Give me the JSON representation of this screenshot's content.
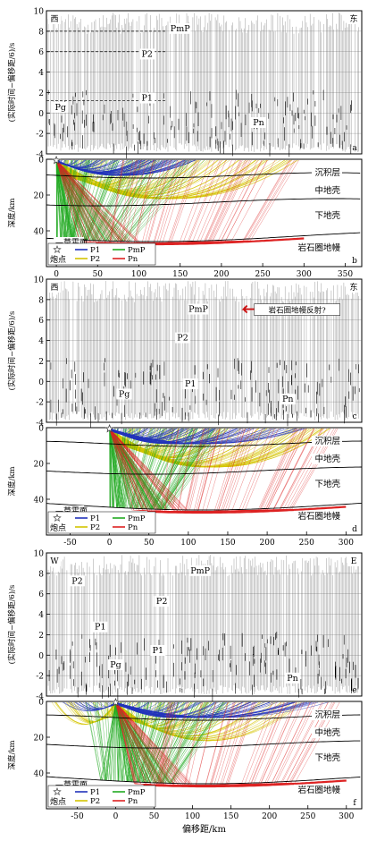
{
  "figure": {
    "xlabel": "偏移距/km",
    "seismic_ylabel": "(实际时间−偏移距/6)/s",
    "depth_ylabel": "深度/km",
    "shot_label": "炮点",
    "layer_labels": [
      "沉积层",
      "中地壳",
      "下地壳",
      "岩石圈地幔"
    ],
    "moho_label": "莫霍面",
    "annotation_c": "岩石圈地幔反射?",
    "legend": [
      {
        "name": "P1",
        "color": "#2233bb"
      },
      {
        "name": "PmP",
        "color": "#22aa22"
      },
      {
        "name": "P2",
        "color": "#d4c400"
      },
      {
        "name": "Pn",
        "color": "#dd2222"
      }
    ]
  },
  "chart_data": [
    {
      "type": "seismic-section",
      "panel": "a",
      "direction_left": "西",
      "direction_right": "东",
      "ylabel": "(实际时间−偏移距/6)/s",
      "ylim": [
        -4,
        10
      ],
      "xlim": [
        -12,
        370
      ],
      "yticks": [
        -4,
        -2,
        0,
        2,
        4,
        6,
        8,
        10
      ],
      "phase_labels": [
        {
          "name": "PmP",
          "x": 150,
          "y": 8.0
        },
        {
          "name": "P2",
          "x": 110,
          "y": 5.5
        },
        {
          "name": "P1",
          "x": 110,
          "y": 1.2
        },
        {
          "name": "Pg",
          "x": 5,
          "y": 0.3
        },
        {
          "name": "Pn",
          "x": 245,
          "y": -1.2
        }
      ],
      "dashed_reference_lines": [
        8,
        6,
        1.2
      ]
    },
    {
      "type": "raypath-model",
      "panel": "b",
      "xlabel": "",
      "ylabel": "深度/km",
      "xlim": [
        -12,
        370
      ],
      "ylim": [
        0,
        60
      ],
      "xticks": [
        0,
        50,
        100,
        150,
        200,
        250,
        300,
        350
      ],
      "yticks": [
        0,
        20,
        40
      ],
      "shot_x": 0,
      "ray_span": {
        "P1": [
          0,
          170
        ],
        "P2": [
          0,
          300
        ],
        "PmP": [
          0,
          180
        ],
        "Pn": [
          80,
          300
        ]
      },
      "layer_labels": [
        "沉积层",
        "中地壳",
        "下地壳",
        "岩石圈地幔"
      ],
      "moho_label": "莫霍面"
    },
    {
      "type": "seismic-section",
      "panel": "c",
      "direction_left": "西",
      "direction_right": "东",
      "ylabel": "(实际时间−偏移距/6)/s",
      "ylim": [
        -4,
        10
      ],
      "xlim": [
        -85,
        320
      ],
      "yticks": [
        -4,
        -2,
        0,
        2,
        4,
        6,
        8,
        10
      ],
      "phase_labels": [
        {
          "name": "PmP",
          "x": 110,
          "y": 6.8
        },
        {
          "name": "P2",
          "x": 90,
          "y": 4.0
        },
        {
          "name": "P1",
          "x": 100,
          "y": -0.5
        },
        {
          "name": "Pg",
          "x": 15,
          "y": -1.5
        },
        {
          "name": "Pn",
          "x": 225,
          "y": -2.0
        }
      ],
      "annotation": "岩石圈地幔反射?"
    },
    {
      "type": "raypath-model",
      "panel": "d",
      "xlabel": "",
      "ylabel": "深度/km",
      "xlim": [
        -80,
        320
      ],
      "ylim": [
        0,
        60
      ],
      "xticks": [
        -50,
        0,
        50,
        100,
        150,
        200,
        250,
        300
      ],
      "yticks": [
        0,
        20,
        40
      ],
      "shot_x": 0,
      "ray_span": {
        "P1": [
          0,
          250
        ],
        "P2": [
          20,
          280
        ],
        "PmP": [
          0,
          150
        ],
        "Pn": [
          80,
          300
        ]
      },
      "layer_labels": [
        "沉积层",
        "中地壳",
        "下地壳",
        "岩石圈地幔"
      ],
      "moho_label": "莫霍面"
    },
    {
      "type": "seismic-section",
      "panel": "e",
      "direction_left": "W",
      "direction_right": "E",
      "ylabel": "(实际时间−偏移距/6)/s",
      "ylim": [
        -4,
        10
      ],
      "xlim": [
        -90,
        320
      ],
      "yticks": [
        -4,
        -2,
        0,
        2,
        4,
        6,
        8,
        10
      ],
      "phase_labels": [
        {
          "name": "P2",
          "x": -50,
          "y": 7.0
        },
        {
          "name": "PmP",
          "x": 110,
          "y": 8.0
        },
        {
          "name": "P2",
          "x": 60,
          "y": 5.0
        },
        {
          "name": "P1",
          "x": -20,
          "y": 2.5
        },
        {
          "name": "P1",
          "x": 55,
          "y": 0.2
        },
        {
          "name": "Pg",
          "x": 0,
          "y": -1.2
        },
        {
          "name": "Pn",
          "x": 230,
          "y": -2.5
        }
      ]
    },
    {
      "type": "raypath-model",
      "panel": "f",
      "xlabel": "偏移距/km",
      "ylabel": "深度/km",
      "xlim": [
        -90,
        320
      ],
      "ylim": [
        0,
        60
      ],
      "xticks": [
        -50,
        0,
        50,
        100,
        150,
        200,
        250,
        300
      ],
      "yticks": [
        0,
        20,
        40
      ],
      "shot_x": 0,
      "ray_span": {
        "P1": [
          -70,
          280
        ],
        "P2": [
          -90,
          250
        ],
        "PmP": [
          -40,
          150
        ],
        "Pn": [
          60,
          300
        ]
      },
      "layer_labels": [
        "沉积层",
        "中地壳",
        "下地壳",
        "岩石圈地幔"
      ],
      "moho_label": "莫霍面"
    }
  ]
}
